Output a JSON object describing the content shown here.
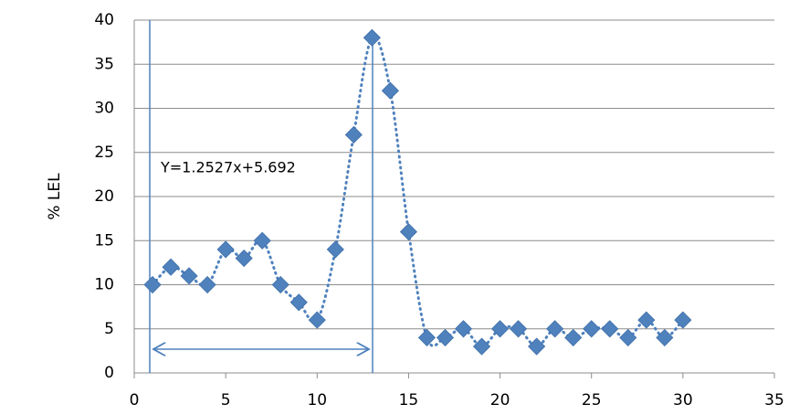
{
  "chart_data": {
    "type": "scatter",
    "y_label": "% LEL",
    "annotation": "Y=1.2527x+5.692",
    "series": [
      {
        "color": "#4f81bd",
        "x": [
          1,
          2,
          3,
          4,
          5,
          6,
          7,
          8,
          9,
          10,
          11,
          12,
          13,
          14,
          15,
          16,
          17,
          18,
          19,
          20,
          21,
          22,
          23,
          24,
          25,
          26,
          27,
          28,
          29,
          30
        ],
        "values": [
          10,
          12,
          11,
          10,
          14,
          13,
          15,
          10,
          8,
          6,
          14,
          27,
          38,
          32,
          16,
          4,
          4,
          5,
          3,
          5,
          5,
          3,
          5,
          4,
          5,
          5,
          4,
          6,
          4,
          6
        ]
      }
    ],
    "xlim": [
      0,
      35
    ],
    "xticks": [
      0,
      5,
      10,
      15,
      20,
      25,
      30,
      35
    ],
    "ylim": [
      0,
      40
    ],
    "yticks": [
      0,
      5,
      10,
      15,
      20,
      25,
      30,
      35,
      40
    ],
    "grid": true
  }
}
